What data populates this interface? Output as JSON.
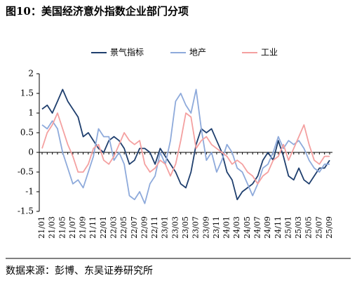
{
  "chart_data": {
    "type": "line",
    "title": "图10：美国经济意外指数企业部门分项",
    "source": "数据来源：彭博、东吴证券研究所",
    "categories": [
      "21/01",
      null,
      "21/03",
      null,
      "21/05",
      null,
      "21/07",
      null,
      "21/09",
      null,
      "21/11",
      null,
      "22/01",
      null,
      "22/03",
      null,
      "22/05",
      null,
      "22/07",
      null,
      "22/09",
      null,
      "22/11",
      null,
      "23/01",
      null,
      "23/03",
      null,
      "23/05",
      null,
      "23/07",
      null,
      "23/09",
      null,
      "23/11",
      null,
      "24/01",
      null,
      "24/03",
      null,
      "24/05",
      null,
      "24/07",
      null,
      "24/09",
      null,
      "24/11",
      null,
      "25/01",
      null,
      "25/03",
      null,
      "25/05",
      null,
      "25/07",
      null,
      "25/09"
    ],
    "series": [
      {
        "name": "景气指标",
        "color": "#1f3f6e",
        "values": [
          1.1,
          1.2,
          1.0,
          1.3,
          1.6,
          1.3,
          1.1,
          0.9,
          0.4,
          0.5,
          0.3,
          0.1,
          0.0,
          0.3,
          0.4,
          0.3,
          0.1,
          -0.3,
          -0.2,
          0.1,
          0.1,
          0.0,
          -0.3,
          0.1,
          -0.1,
          -0.3,
          -0.5,
          -0.8,
          -0.9,
          -0.5,
          0.2,
          0.6,
          0.5,
          0.6,
          0.3,
          0.0,
          -0.5,
          -0.7,
          -1.2,
          -1.0,
          -0.9,
          -0.8,
          -0.6,
          -0.2,
          0.0,
          -0.2,
          0.3,
          -0.1,
          -0.6,
          -0.7,
          -0.4,
          -0.7,
          -0.8,
          -0.6,
          -0.4,
          -0.4,
          -0.2
        ]
      },
      {
        "name": "地产",
        "color": "#8eaadb",
        "values": [
          0.7,
          0.6,
          0.8,
          0.6,
          0.0,
          -0.4,
          -0.8,
          -0.7,
          -0.9,
          -0.5,
          -0.1,
          0.6,
          0.4,
          0.4,
          -0.2,
          0.0,
          -0.3,
          -1.1,
          -1.2,
          -1.0,
          -1.3,
          -0.8,
          -0.6,
          0.0,
          -0.3,
          0.3,
          1.3,
          1.5,
          1.2,
          1.0,
          1.6,
          0.6,
          -0.2,
          0.0,
          -0.5,
          -0.2,
          0.2,
          0.0,
          -0.4,
          -0.5,
          -0.8,
          -1.1,
          -0.8,
          -0.4,
          -0.3,
          0.0,
          0.4,
          0.1,
          0.3,
          0.2,
          0.3,
          0.1,
          -0.2,
          -0.4,
          -0.5,
          -0.3,
          -0.3
        ]
      },
      {
        "name": "工业",
        "color": "#f4a0a0",
        "values": [
          0.1,
          0.5,
          0.7,
          1.0,
          0.6,
          0.2,
          -0.1,
          -0.5,
          -0.5,
          -0.3,
          0.1,
          0.2,
          -0.2,
          -0.3,
          -0.1,
          0.2,
          0.5,
          0.3,
          0.2,
          0.3,
          -0.3,
          -0.5,
          -0.4,
          -0.2,
          -0.3,
          -0.6,
          -0.3,
          0.3,
          1.0,
          0.9,
          0.1,
          0.3,
          0.4,
          0.2,
          0.1,
          0.0,
          -0.1,
          -0.3,
          -0.2,
          -0.3,
          -0.5,
          -0.6,
          -0.8,
          -0.6,
          -0.5,
          -0.2,
          -0.1,
          0.2,
          -0.2,
          0.1,
          0.4,
          0.7,
          0.2,
          -0.2,
          -0.3,
          -0.1,
          -0.1
        ]
      }
    ],
    "ylim": [
      -1.5,
      2
    ],
    "yticks": [
      -1.5,
      -1,
      -0.5,
      0,
      0.5,
      1,
      1.5,
      2
    ],
    "legend": "top"
  }
}
